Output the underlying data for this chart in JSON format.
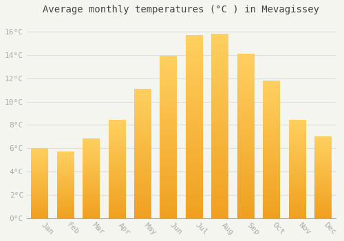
{
  "title": "Average monthly temperatures (°C ) in Mevagissey",
  "months": [
    "Jan",
    "Feb",
    "Mar",
    "Apr",
    "May",
    "Jun",
    "Jul",
    "Aug",
    "Sep",
    "Oct",
    "Nov",
    "Dec"
  ],
  "values": [
    6.0,
    5.7,
    6.8,
    8.4,
    11.1,
    13.9,
    15.7,
    15.8,
    14.1,
    11.8,
    8.4,
    7.0
  ],
  "bar_color_bottom": "#F0A020",
  "bar_color_top": "#FFD060",
  "ylim": [
    0,
    17
  ],
  "yticks": [
    0,
    2,
    4,
    6,
    8,
    10,
    12,
    14,
    16
  ],
  "ytick_labels": [
    "0°C",
    "2°C",
    "4°C",
    "6°C",
    "8°C",
    "10°C",
    "12°C",
    "14°C",
    "16°C"
  ],
  "background_color": "#f5f5f0",
  "grid_color": "#dddddd",
  "title_fontsize": 10,
  "tick_fontsize": 8,
  "tick_color": "#aaaaaa",
  "bar_width": 0.65,
  "figsize": [
    5.0,
    3.5
  ],
  "dpi": 100
}
